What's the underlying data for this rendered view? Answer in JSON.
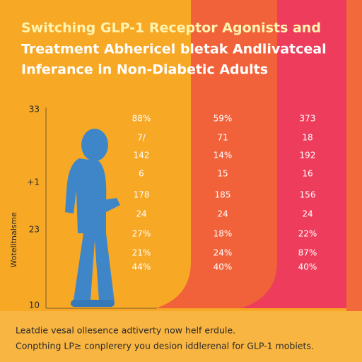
{
  "header": {
    "title_lines": [
      "Switching GLP-1 Receptor Agonists and",
      "Treatment Abhericel bletak Andlivatceal",
      "Inferance in Non-Diabetic Adults"
    ]
  },
  "axis": {
    "label": "Wotelltnalsme",
    "ticks": [
      "33",
      "+1",
      "23",
      "10"
    ]
  },
  "table": {
    "columns": [
      [
        "88%",
        "7/",
        "142",
        "6",
        "178",
        "24",
        "27%",
        "21%",
        "44%"
      ],
      [
        "59%",
        "71",
        "14%",
        "15",
        "185",
        "24",
        "18%",
        "24%",
        "40%"
      ],
      [
        "373",
        "18",
        "192",
        "16",
        "156",
        "24",
        "22%",
        "87%",
        "40%"
      ]
    ]
  },
  "footer": {
    "lines": [
      "Leatdie vesal ollesence adtiverty now helf erdule.",
      "Conpthing LP≥ conplerery you desion iddlerenal for GLP-1 mobiets."
    ]
  }
}
